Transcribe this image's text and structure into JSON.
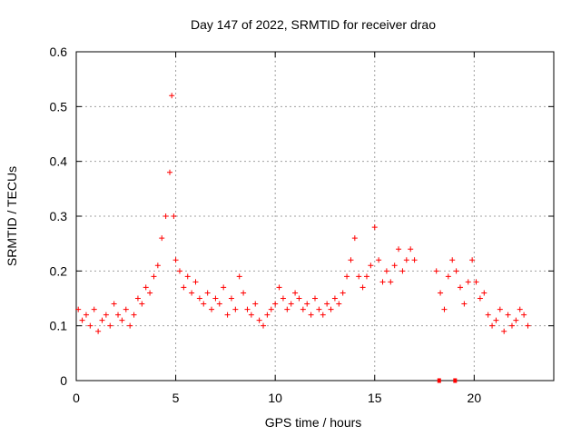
{
  "chart_data": {
    "type": "scatter",
    "title": "Day 147 of 2022, SRMTID for receiver drao",
    "xlabel": "GPS time / hours",
    "ylabel": "SRMTID / TECUs",
    "xlim": [
      0,
      24
    ],
    "ylim": [
      0,
      0.6
    ],
    "xticks": [
      0,
      5,
      10,
      15,
      20
    ],
    "xtick_labels": [
      "0",
      "5",
      "10",
      "15",
      "20"
    ],
    "yticks": [
      0,
      0.1,
      0.2,
      0.3,
      0.4,
      0.5,
      0.6
    ],
    "ytick_labels": [
      "0",
      "0.1",
      "0.2",
      "0.3",
      "0.4",
      "0.5",
      "0.6"
    ],
    "grid": true,
    "marker": "+",
    "color": "#ff0000",
    "series": [
      {
        "name": "SRMTID",
        "x": [
          0.1,
          0.3,
          0.5,
          0.7,
          0.9,
          1.1,
          1.3,
          1.5,
          1.7,
          1.9,
          2.1,
          2.3,
          2.5,
          2.7,
          2.9,
          3.1,
          3.3,
          3.5,
          3.7,
          3.9,
          4.1,
          4.3,
          4.5,
          4.7,
          4.8,
          4.9,
          5.0,
          5.2,
          5.4,
          5.6,
          5.8,
          6.0,
          6.2,
          6.4,
          6.6,
          6.8,
          7.0,
          7.2,
          7.4,
          7.6,
          7.8,
          8.0,
          8.2,
          8.4,
          8.6,
          8.8,
          9.0,
          9.2,
          9.4,
          9.6,
          9.8,
          10.0,
          10.2,
          10.4,
          10.6,
          10.8,
          11.0,
          11.2,
          11.4,
          11.6,
          11.8,
          12.0,
          12.2,
          12.4,
          12.6,
          12.8,
          13.0,
          13.2,
          13.4,
          13.6,
          13.8,
          14.0,
          14.2,
          14.4,
          14.6,
          14.8,
          15.0,
          15.2,
          15.4,
          15.6,
          15.8,
          16.0,
          16.2,
          16.4,
          16.6,
          16.8,
          17.0,
          18.1,
          18.3,
          18.5,
          18.7,
          18.9,
          19.1,
          19.3,
          19.5,
          19.7,
          19.9,
          20.1,
          20.3,
          20.5,
          20.7,
          20.9,
          21.1,
          21.3,
          21.5,
          21.7,
          21.9,
          22.1,
          22.3,
          22.5,
          22.7
        ],
        "y": [
          0.13,
          0.11,
          0.12,
          0.1,
          0.13,
          0.09,
          0.11,
          0.12,
          0.1,
          0.14,
          0.12,
          0.11,
          0.13,
          0.1,
          0.12,
          0.15,
          0.14,
          0.17,
          0.16,
          0.19,
          0.21,
          0.26,
          0.3,
          0.38,
          0.52,
          0.3,
          0.22,
          0.2,
          0.17,
          0.19,
          0.16,
          0.18,
          0.15,
          0.14,
          0.16,
          0.13,
          0.15,
          0.14,
          0.17,
          0.12,
          0.15,
          0.13,
          0.19,
          0.16,
          0.13,
          0.12,
          0.14,
          0.11,
          0.1,
          0.12,
          0.13,
          0.14,
          0.17,
          0.15,
          0.13,
          0.14,
          0.16,
          0.15,
          0.13,
          0.14,
          0.12,
          0.15,
          0.13,
          0.12,
          0.14,
          0.13,
          0.15,
          0.14,
          0.16,
          0.19,
          0.22,
          0.26,
          0.19,
          0.17,
          0.19,
          0.21,
          0.28,
          0.22,
          0.18,
          0.2,
          0.18,
          0.21,
          0.24,
          0.2,
          0.22,
          0.24,
          0.22,
          0.2,
          0.16,
          0.13,
          0.19,
          0.22,
          0.2,
          0.17,
          0.14,
          0.18,
          0.22,
          0.18,
          0.15,
          0.16,
          0.12,
          0.1,
          0.11,
          0.13,
          0.09,
          0.12,
          0.1,
          0.11,
          0.13,
          0.12,
          0.1
        ]
      }
    ],
    "gaps": [
      {
        "x": [
          18.15,
          18.25
        ],
        "y": 0
      },
      {
        "x": [
          18.95,
          19.05
        ],
        "y": 0
      }
    ]
  }
}
